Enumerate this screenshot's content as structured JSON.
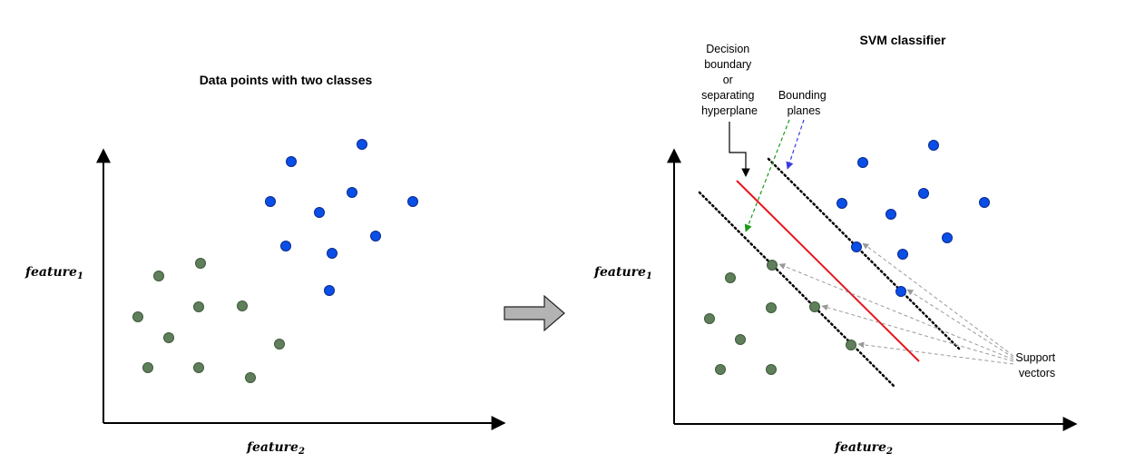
{
  "left_panel": {
    "title": "Data points with two classes",
    "y_label": {
      "base": "feature",
      "sub": "1"
    },
    "x_label": {
      "base": "feature",
      "sub": "2"
    }
  },
  "right_panel": {
    "title": "SVM classifier",
    "y_label": {
      "base": "feature",
      "sub": "1"
    },
    "x_label": {
      "base": "feature",
      "sub": "2"
    }
  },
  "annotations": {
    "decision_boundary": [
      "Decision",
      "boundary",
      "or",
      "separating",
      "hyperplane"
    ],
    "bounding_planes": [
      "Bounding",
      "planes"
    ],
    "support_vectors": [
      "Support",
      "vectors"
    ]
  },
  "colors": {
    "class_a": "#0a4ee8",
    "class_b": "#5e7f5a",
    "hyperplane": "#e8141c",
    "arrow_green": "#1a9a1a",
    "arrow_blue": "#3a3ae8",
    "arrow_gray": "#9a9a9a",
    "transform_arrow": "#b3b3b3"
  }
}
